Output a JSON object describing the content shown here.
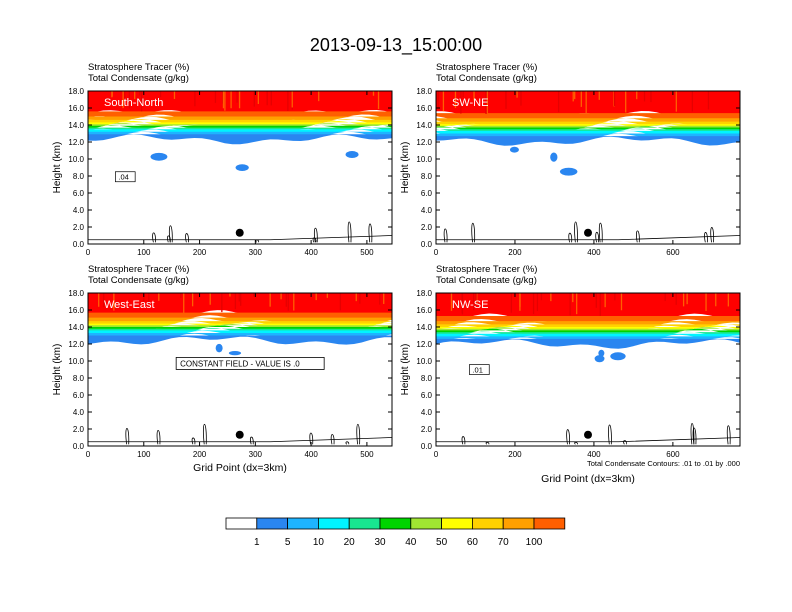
{
  "title": "2013-09-13_15:00:00",
  "colorbar": {
    "labels": [
      "1",
      "5",
      "10",
      "20",
      "30",
      "40",
      "50",
      "60",
      "70",
      "100"
    ],
    "colors": [
      "#ffffff",
      "#2a86f0",
      "#1eb4ff",
      "#00f4ff",
      "#18e690",
      "#00d400",
      "#a0e632",
      "#ffff00",
      "#ffd200",
      "#ffa000",
      "#ff5f00",
      "#ff0000"
    ]
  },
  "chart_data": [
    {
      "type": "heatmap",
      "panel_label": "South-North",
      "title_lines": [
        "Stratosphere Tracer   (%)",
        "Total Condensate   (g/kg)"
      ],
      "ylabel": "Height (km)",
      "xlabel": "",
      "xlim": [
        0,
        545
      ],
      "ylim": [
        0,
        18
      ],
      "x_ticks": [
        "0",
        "100",
        "200",
        "300",
        "400",
        "500"
      ],
      "x_tick_values": [
        0,
        100,
        200,
        300,
        400,
        500
      ],
      "y_ticks": [
        "0.0",
        "2.0",
        "4.0",
        "6.0",
        "8.0",
        "10.0",
        "12.0",
        "14.0",
        "16.0",
        "18.0"
      ],
      "tropopause_km": 13.5,
      "marker_x": 272,
      "annotations": [
        {
          "text": ".04"
        }
      ],
      "note": ""
    },
    {
      "type": "heatmap",
      "panel_label": "SW-NE",
      "title_lines": [
        "Stratosphere Tracer   (%)",
        "Total Condensate   (g/kg)"
      ],
      "ylabel": "Height (km)",
      "xlabel": "",
      "xlim": [
        0,
        770
      ],
      "ylim": [
        0,
        18
      ],
      "x_ticks": [
        "0",
        "200",
        "400",
        "600"
      ],
      "x_tick_values": [
        0,
        200,
        400,
        600
      ],
      "y_ticks": [
        "0.0",
        "2.0",
        "4.0",
        "6.0",
        "8.0",
        "10.0",
        "12.0",
        "14.0",
        "16.0",
        "18.0"
      ],
      "tropopause_km": 13.3,
      "marker_x": 385,
      "annotations": [],
      "note": ""
    },
    {
      "type": "heatmap",
      "panel_label": "West-East",
      "title_lines": [
        "Stratosphere Tracer   (%)",
        "Total Condensate   (g/kg)"
      ],
      "ylabel": "Height (km)",
      "xlabel": "Grid Point (dx=3km)",
      "xlim": [
        0,
        545
      ],
      "ylim": [
        0,
        18
      ],
      "x_ticks": [
        "0",
        "100",
        "200",
        "300",
        "400",
        "500"
      ],
      "x_tick_values": [
        0,
        100,
        200,
        300,
        400,
        500
      ],
      "y_ticks": [
        "0.0",
        "2.0",
        "4.0",
        "6.0",
        "8.0",
        "10.0",
        "12.0",
        "14.0",
        "16.0",
        "18.0"
      ],
      "tropopause_km": 13.6,
      "marker_x": 272,
      "annotations": [
        {
          "text": "CONSTANT FIELD - VALUE IS .0"
        }
      ],
      "note": ""
    },
    {
      "type": "heatmap",
      "panel_label": "NW-SE",
      "title_lines": [
        "Stratosphere Tracer   (%)",
        "Total Condensate   (g/kg)"
      ],
      "ylabel": "Height (km)",
      "xlabel": "Grid Point (dx=3km)",
      "xlim": [
        0,
        770
      ],
      "ylim": [
        0,
        18
      ],
      "x_ticks": [
        "0",
        "200",
        "400",
        "600"
      ],
      "x_tick_values": [
        0,
        200,
        400,
        600
      ],
      "y_ticks": [
        "0.0",
        "2.0",
        "4.0",
        "6.0",
        "8.0",
        "10.0",
        "12.0",
        "14.0",
        "16.0",
        "18.0"
      ],
      "tropopause_km": 13.2,
      "marker_x": 385,
      "annotations": [
        {
          "text": ".01"
        }
      ],
      "note": "Total Condensate Contours: .01 to .01 by .000"
    }
  ]
}
